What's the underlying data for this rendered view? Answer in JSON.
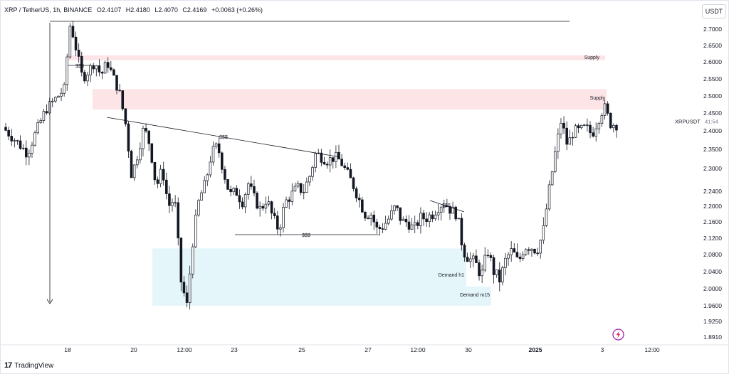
{
  "header": {
    "symbol": "XRP / TetherUS, 1h, BINANCE",
    "open": "O2.4107",
    "high": "H2.4180",
    "low": "L2.4070",
    "close": "C2.4169",
    "change": "+0.0063 (+0.26%)",
    "currency": "USDT"
  },
  "footer": {
    "brand": "TradingView"
  },
  "colors": {
    "up": "#131722",
    "down": "#131722",
    "supply": "#fde4e6",
    "demand": "#e3f6f9",
    "grid": "#f0f3fa"
  },
  "chart_data": {
    "type": "candlestick",
    "price_scale": [
      "2.7000",
      "2.6500",
      "2.6000",
      "2.5500",
      "2.5000",
      "2.4500",
      "2.4000",
      "2.3500",
      "2.3000",
      "2.2400",
      "2.2000",
      "2.1600",
      "2.1200",
      "2.0800",
      "2.0400",
      "2.0000",
      "1.9600",
      "1.9250",
      "1.8910"
    ],
    "time_ticks": [
      "18",
      "20",
      "12:00",
      "23",
      "25",
      "27",
      "12:00",
      "30",
      "2025",
      "3",
      "12:00"
    ],
    "ylim": [
      1.88,
      2.74
    ],
    "last_label": {
      "symbol": "XRPUSDT",
      "countdown": "41:54",
      "price": 2.4169
    },
    "zones": [
      {
        "label": "Supply",
        "type": "supply",
        "from": 2.605,
        "to": 2.62
      },
      {
        "label": "Supply",
        "type": "supply",
        "from": 2.46,
        "to": 2.52
      },
      {
        "label": "Demand h1",
        "type": "demand",
        "from": 2.005,
        "to": 2.095
      },
      {
        "label": "Demand m15",
        "type": "demand",
        "from": 1.96,
        "to": 2.005
      }
    ],
    "annotations": [
      {
        "text": "$$$",
        "kind": "liquidity-high"
      },
      {
        "text": "$$$",
        "kind": "trendline"
      },
      {
        "text": "$$$",
        "kind": "equal-lows"
      },
      {
        "text": "$$$",
        "kind": "minor-trendline"
      }
    ],
    "path": [
      [
        0,
        2.41
      ],
      [
        4,
        2.34
      ],
      [
        7,
        2.46
      ],
      [
        10,
        2.52
      ],
      [
        11,
        2.72
      ],
      [
        13,
        2.55
      ],
      [
        15,
        2.6
      ],
      [
        16,
        2.56
      ],
      [
        17,
        2.6
      ],
      [
        19,
        2.51
      ],
      [
        20,
        2.42
      ],
      [
        21,
        2.28
      ],
      [
        22,
        2.34
      ],
      [
        23,
        2.41
      ],
      [
        24,
        2.36
      ],
      [
        25,
        2.25
      ],
      [
        26,
        2.3
      ],
      [
        27,
        2.2
      ],
      [
        28,
        2.22
      ],
      [
        29,
        2.02
      ],
      [
        30,
        1.96
      ],
      [
        31,
        2.12
      ],
      [
        32,
        2.22
      ],
      [
        33,
        2.26
      ],
      [
        34,
        2.34
      ],
      [
        35,
        2.36
      ],
      [
        36,
        2.29
      ],
      [
        37,
        2.23
      ],
      [
        38,
        2.24
      ],
      [
        39,
        2.21
      ],
      [
        40,
        2.26
      ],
      [
        41,
        2.22
      ],
      [
        42,
        2.19
      ],
      [
        43,
        2.22
      ],
      [
        44,
        2.17
      ],
      [
        45,
        2.14
      ],
      [
        46,
        2.21
      ],
      [
        47,
        2.23
      ],
      [
        48,
        2.25
      ],
      [
        49,
        2.24
      ],
      [
        50,
        2.28
      ],
      [
        51,
        2.34
      ],
      [
        52,
        2.33
      ],
      [
        53,
        2.32
      ],
      [
        54,
        2.33
      ],
      [
        55,
        2.32
      ],
      [
        56,
        2.29
      ],
      [
        57,
        2.26
      ],
      [
        58,
        2.22
      ],
      [
        59,
        2.18
      ],
      [
        60,
        2.18
      ],
      [
        61,
        2.14
      ],
      [
        62,
        2.15
      ],
      [
        63,
        2.17
      ],
      [
        64,
        2.2
      ],
      [
        65,
        2.16
      ],
      [
        66,
        2.16
      ],
      [
        67,
        2.14
      ],
      [
        68,
        2.17
      ],
      [
        69,
        2.17
      ],
      [
        70,
        2.18
      ],
      [
        71,
        2.2
      ],
      [
        72,
        2.21
      ],
      [
        73,
        2.19
      ],
      [
        74,
        2.18
      ],
      [
        75,
        2.09
      ],
      [
        76,
        2.07
      ],
      [
        77,
        2.06
      ],
      [
        78,
        2.03
      ],
      [
        79,
        2.09
      ],
      [
        80,
        2.04
      ],
      [
        81,
        2.02
      ],
      [
        82,
        2.07
      ],
      [
        83,
        2.09
      ],
      [
        84,
        2.06
      ],
      [
        85,
        2.1
      ],
      [
        86,
        2.1
      ],
      [
        87,
        2.09
      ],
      [
        88,
        2.13
      ],
      [
        89,
        2.24
      ],
      [
        90,
        2.34
      ],
      [
        91,
        2.43
      ],
      [
        92,
        2.36
      ],
      [
        93,
        2.4
      ],
      [
        94,
        2.4
      ],
      [
        95,
        2.41
      ],
      [
        96,
        2.39
      ],
      [
        97,
        2.43
      ],
      [
        98,
        2.47
      ],
      [
        99,
        2.42
      ],
      [
        100,
        2.4169
      ]
    ]
  }
}
